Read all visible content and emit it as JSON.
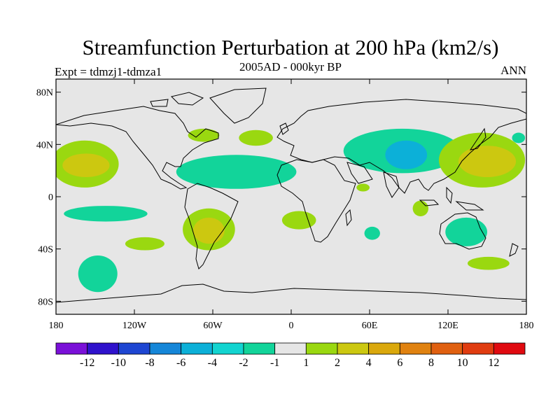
{
  "chart_data": {
    "type": "heatmap",
    "title": "Streamfunction Perturbation at 200 hPa (km2/s)",
    "subtitle": "2005AD - 000kyr BP",
    "left_label": "Expt = tdmzj1-tdmza1",
    "right_label": "ANN",
    "x_range": [
      -180,
      180
    ],
    "y_range": [
      -90,
      90
    ],
    "x_ticks": [
      {
        "value": -180,
        "label": "180"
      },
      {
        "value": -120,
        "label": "120W"
      },
      {
        "value": -60,
        "label": "60W"
      },
      {
        "value": 0,
        "label": "0"
      },
      {
        "value": 60,
        "label": "60E"
      },
      {
        "value": 120,
        "label": "120E"
      },
      {
        "value": 180,
        "label": "180"
      }
    ],
    "y_ticks": [
      {
        "value": 80,
        "label": "80N"
      },
      {
        "value": 40,
        "label": "40N"
      },
      {
        "value": 0,
        "label": "0"
      },
      {
        "value": -40,
        "label": "40S"
      },
      {
        "value": -80,
        "label": "80S"
      }
    ],
    "colorbar": {
      "colors": [
        "#7a10d8",
        "#2f12cc",
        "#1e46d2",
        "#1586d8",
        "#0cb0d8",
        "#12d4d0",
        "#12d49a",
        "#e6e6e6",
        "#9ad810",
        "#ccc810",
        "#daa80c",
        "#e08210",
        "#e06010",
        "#e03c10",
        "#e00a10"
      ],
      "labels": [
        "-12",
        "-10",
        "-8",
        "-6",
        "-4",
        "-2",
        "-1",
        "1",
        "2",
        "4",
        "6",
        "8",
        "10",
        "12"
      ]
    },
    "regions": [
      {
        "name": "north-pacific-anticyclone",
        "lon": -158,
        "lat": 25,
        "rlon": 26,
        "rlat": 18,
        "level": 2
      },
      {
        "name": "north-pacific-anticyclone-core",
        "lon": -157,
        "lat": 24,
        "rlon": 18,
        "rlat": 9,
        "level": 4
      },
      {
        "name": "north-atlantic-cyclone",
        "lon": -42,
        "lat": 19,
        "rlon": 46,
        "rlat": 13,
        "level": -2
      },
      {
        "name": "north-america-positive",
        "lon": -67,
        "lat": 47,
        "rlon": 12,
        "rlat": 5,
        "level": 2
      },
      {
        "name": "north-atlantic-positive",
        "lon": -27,
        "lat": 45,
        "rlon": 13,
        "rlat": 6,
        "level": 2
      },
      {
        "name": "asia-cyclone",
        "lon": 85,
        "lat": 35,
        "rlon": 45,
        "rlat": 17,
        "level": -2
      },
      {
        "name": "asia-cyclone-core",
        "lon": 88,
        "lat": 32,
        "rlon": 16,
        "rlat": 11,
        "level": -4
      },
      {
        "name": "east-africa-positive",
        "lon": 55,
        "lat": 7,
        "rlon": 5,
        "rlat": 3,
        "level": 2
      },
      {
        "name": "west-pacific-anticyclone",
        "lon": 146,
        "lat": 28,
        "rlon": 33,
        "rlat": 21,
        "level": 2
      },
      {
        "name": "west-pacific-anticyclone-core",
        "lon": 150,
        "lat": 27,
        "rlon": 22,
        "rlat": 12,
        "level": 4
      },
      {
        "name": "north-pacific-small-cyclone",
        "lon": 174,
        "lat": 45,
        "rlon": 5,
        "rlat": 4,
        "level": -2
      },
      {
        "name": "south-pacific-band",
        "lon": -142,
        "lat": -13,
        "rlon": 32,
        "rlat": 6,
        "level": -2
      },
      {
        "name": "south-america-anticyclone",
        "lon": -63,
        "lat": -25,
        "rlon": 20,
        "rlat": 16,
        "level": 2
      },
      {
        "name": "south-america-anticyclone-core",
        "lon": -63,
        "lat": -26,
        "rlon": 12,
        "rlat": 10,
        "level": 4
      },
      {
        "name": "south-pacific-positive",
        "lon": -112,
        "lat": -36,
        "rlon": 15,
        "rlat": 5,
        "level": 2
      },
      {
        "name": "south-pacific-cyclone",
        "lon": -148,
        "lat": -59,
        "rlon": 15,
        "rlat": 14,
        "level": -2
      },
      {
        "name": "south-atlantic-positive",
        "lon": 6,
        "lat": -18,
        "rlon": 13,
        "rlat": 7,
        "level": 2
      },
      {
        "name": "madagascar-cyclone",
        "lon": 62,
        "lat": -28,
        "rlon": 6,
        "rlat": 5,
        "level": -2
      },
      {
        "name": "indian-ocean-positive",
        "lon": 99,
        "lat": -9,
        "rlon": 6,
        "rlat": 6,
        "level": 2
      },
      {
        "name": "australia-cyclone",
        "lon": 134,
        "lat": -27,
        "rlon": 16,
        "rlat": 11,
        "level": -2
      },
      {
        "name": "south-of-australia-positive",
        "lon": 151,
        "lat": -51,
        "rlon": 16,
        "rlat": 5,
        "level": 2
      }
    ]
  }
}
